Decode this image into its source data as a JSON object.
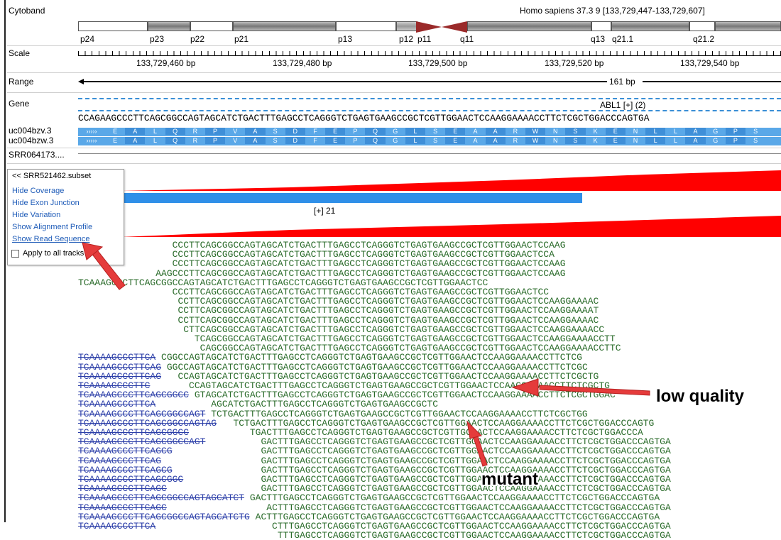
{
  "labels": {
    "cytoband": "Cytoband",
    "scale": "Scale",
    "range": "Range",
    "gene": "Gene",
    "tx1": "uc004bzv.3",
    "tx2": "uc004bzw.3",
    "track": "SRR064173....",
    "assembly": "Homo sapiens 37.3 9 [133,729,447-133,729,607]"
  },
  "cytobands": [
    "p24",
    "p23",
    "p22",
    "p21",
    "p13",
    "p12",
    "p11",
    "q11",
    "q13",
    "q21.1",
    "q21.2"
  ],
  "scale": {
    "ticks": [
      "133,729,460 bp",
      "133,729,480 bp",
      "133,729,500 bp",
      "133,729,520 bp",
      "133,729,540 bp"
    ]
  },
  "range": {
    "text": "161 bp"
  },
  "gene": {
    "name": "ABL1 [+] (2)",
    "sequence": "CCAGAAGCCCTTCAGCGGCCAGTAGCATCTGACTTTGAGCCTCAGGGTCTGAGTGAAGCCGCTCGTTGGAACTCCAAGGAAAACCTTCTCGCTGGACCCAGTGA",
    "aa": [
      "E",
      "A",
      "L",
      "Q",
      "R",
      "P",
      "V",
      "A",
      "S",
      "D",
      "F",
      "E",
      "P",
      "Q",
      "G",
      "L",
      "S",
      "E",
      "A",
      "A",
      "R",
      "W",
      "N",
      "S",
      "K",
      "E",
      "N",
      "L",
      "L",
      "A",
      "G",
      "P",
      "S"
    ]
  },
  "coverage": {
    "label": "[+] 21"
  },
  "menu": {
    "title": "<< SRR521462.subset",
    "items": [
      "Hide Coverage",
      "Hide Exon Junction",
      "Hide Variation",
      "Show Alignment Profile",
      "Show Read Sequence"
    ],
    "apply": "Apply to all tracks"
  },
  "reads": [
    {
      "pre": "",
      "pad": 17,
      "seq": "CCCTTCAGCGGCCAGTAGCATCTGACTTTGAGCCTCAGGGTCTGAGTGAAGCCGCTCGTTGGAACTCCAAG"
    },
    {
      "pre": "",
      "pad": 17,
      "seq": "CCCTTCAGCGGCCAGTAGCATCTGACTTTGAGCCTCAGGGTCTGAGTGAAGCCGCTCGTTGGAACTCCA"
    },
    {
      "pre": "",
      "pad": 17,
      "seq": "CCCTTCAGCGGCCAGTAGCATCTGACTTTGAGCCTCAGGGTCTGAGTGAAGCCGCTCGTTGGAACTCCAAG"
    },
    {
      "pre": "",
      "pad": 14,
      "seq": "AAGCCCTTCAGCGGCCAGTAGCATCTGACTTTGAGCCTCAGGGTCTGAGTGAAGCCGCTCGTTGGAACTCCAAG"
    },
    {
      "pre": "",
      "pad": 0,
      "seq": "TCAAAGCCCTTCAGCGGCCAGTAGCATCTGACTTTGAGCCTCAGGGTCTGAGTGAAGCCGCTCGTTGGAACTCC"
    },
    {
      "pre": "",
      "pad": 17,
      "seq": "CCCTTCAGCGGCCAGTAGCATCTGACTTTGAGCCTCAGGGTCTGAGTGAAGCCGCTCGTTGGAACTCC"
    },
    {
      "pre": "",
      "pad": 18,
      "seq": "CCTTCAGCGGCCAGTAGCATCTGACTTTGAGCCTCAGGGTCTGAGTGAAGCCGCTCGTTGGAACTCCAAGGAAAAC"
    },
    {
      "pre": "",
      "pad": 18,
      "seq": "CCTTCAGCGGCCAGTAGCATCTGACTTTGAGCCTCAGGGTCTGAGTGAAGCCGCTCGTTGGAACTCCAAGGAAAAT"
    },
    {
      "pre": "",
      "pad": 18,
      "seq": "CCTTCAGCGGCCAGTAGCATCTGACTTTGAGCCTCAGGGTCTGAGTGAAGCCGCTCGTTGGAACTCCAAGGAAAAC"
    },
    {
      "pre": "",
      "pad": 19,
      "seq": "CTTCAGCGGCCAGTAGCATCTGACTTTGAGCCTCAGGGTCTGAGTGAAGCCGCTCGTTGGAACTCCAAGGAAAACC"
    },
    {
      "pre": "",
      "pad": 21,
      "seq": "TCAGCGGCCAGTAGCATCTGACTTTGAGCCTCAGGGTCTGAGTGAAGCCGCTCGTTGGAACTCCAAGGAAAACCTT"
    },
    {
      "pre": "",
      "pad": 22,
      "seq": "CAGCGGCCAGTAGCATCTGACTTTGAGCCTCAGGGTCTGAGTGAAGCCGCTCGTTGGAACTCCAAGGAAAACCTTC"
    },
    {
      "pre": "TCAAAAGCCCTTCA",
      "pad": 1,
      "seq": "CGGCCAGTAGCATCTGACTTTGAGCCTCAGGGTCTGAGTGAAGCCGCTCGTTGGAACTCCAAGGAAAACCTTCTCG"
    },
    {
      "pre": "TCAAAAGCCCTTCAG",
      "pad": 1,
      "seq": "GGCCAGTAGCATCTGACTTTGAGCCTCAGGGTCTGAGTGAAGCCGCTCGTTGGAACTCCAAGGAAAACCTTCTCGC"
    },
    {
      "pre": "TCAAAAGCCCTTCAG",
      "pad": 3,
      "seq": "CCAGTAGCATCTGACTTTGAGCCTCAGGGTCTGAGTGAAGCCGCTCGTTGGAACTCCAAGGAAAACCTTCTCGCTG"
    },
    {
      "pre": "TCAAAAGCCCTTC",
      "pad": 7,
      "seq": "CCAGTAGCATCTGACTTTGAGCCTCAGGGTCTGAGTGAAGCCGCTCGTTGGAACTCCAAGGAAAACCTTCTCGCTG"
    },
    {
      "pre": "TCAAAAGCCCTTCAGCGGCC",
      "pad": 1,
      "seq": "GTAGCATCTGACTTTGAGCCTCAGGGTCTGAGTGAAGCCGCTCGTTGGAACTCCAAGGAAAACCTTCTCGCTGGAC"
    },
    {
      "pre": "TCAAAAGCCCTTCA",
      "pad": 10,
      "seq": "AGCATCTGACTTTGAGCCTCAGGGTCTGAGTGAAGCCGCTC"
    },
    {
      "pre": "TCAAAAGCCCTTCAGCGGCCAGT",
      "pad": 1,
      "seq": "TCTGACTTTGAGCCTCAGGGTCTGAGTGAAGCCGCTCGTTGGAACTCCAAGGAAAACCTTCTCGCTGG"
    },
    {
      "pre": "TCAAAAGCCCTTCAGCGGCCAGTAG",
      "pad": 3,
      "seq": "TCTGACTTTGAGCCTCAGGGTCTGAGTGAAGCCGCTCGTTGGAACTCCAAGGAAAACCTTCTCGCTGGACCCAGTG"
    },
    {
      "pre": "TCAAAAGCCCTTCAGCGGCC",
      "pad": 11,
      "seq": "TGACTTTGAGCCTCAGGGTCTGAGTGAAGCCGCTCGTTGGAACTCCAAGGAAAACCTTCTCGCTGGACCCA"
    },
    {
      "pre": "TCAAAAGCCCTTCAGCGGCCAGT",
      "pad": 10,
      "seq": "GACTTTGAGCCTCAGGGTCTGAGTGAAGCCGCTCGTTGGAACTCCAAGGAAAACCTTCTCGCTGGACCCAGTGA"
    },
    {
      "pre": "TCAAAAGCCCTTCAGCG",
      "pad": 16,
      "seq": "GACTTTGAGCCTCAGGGTCTGAGTGAAGCCGCTCGTTGGAACTCCAAGGAAAACCTTCTCGCTGGACCCAGTGA"
    },
    {
      "pre": "TCAAAAGCCCTTCAG",
      "pad": 18,
      "seq": "GACTTTGAGCCTCAGGGTCTGAGTGAAGCCGCTCGTTGGAACTCCAAGGAAAACCTTCTCGCTGGACCCAGTGA"
    },
    {
      "pre": "TCAAAAGCCCTTCAGCG",
      "pad": 16,
      "seq": "GACTTTGAGCCTCAGGGTCTGAGTGAAGCCGCTCGTTGGAACTCCAAGGAAAACCTTCTCGCTGGACCCAGTGA"
    },
    {
      "pre": "TCAAAAGCCCTTCAGCGGC",
      "pad": 14,
      "seq": "GACTTTGAGCCTCAGGGTCTGAGTGAAGCCGCTCGTTGGAACTCCAAGGAAAACCTTCTCGCTGGACCCAGTGA"
    },
    {
      "pre": "TCAAAAGCCCTTCAGC",
      "pad": 17,
      "seq": "GACTTTGAGCCTCAGGGTCTGAGTGAAGCCGCTCGTTGGAACTCCAAGGAAAACCTTCTCGCTGGACCCAGTGA"
    },
    {
      "pre": "TCAAAAGCCCTTCAGCGGCCAGTAGCATCT",
      "pad": 1,
      "seq": "GACTTTGAGCCTCAGGGTCTGAGTGAAGCCGCTCGTTGGAACTCCAAGGAAAACCTTCTCGCTGGACCCAGTGA"
    },
    {
      "pre": "TCAAAAGCCCTTCAGC",
      "pad": 18,
      "seq": "ACTTTGAGCCTCAGGGTCTGAGTGAAGCCGCTCGTTGGAACTCCAAGGAAAACCTTCTCGCTGGACCCAGTGA"
    },
    {
      "pre": "TCAAAAGCCCTTCAGCGGCCAGTAGCATCTG",
      "pad": 1,
      "seq": "ACTTTGAGCCTCAGGGTCTGAGTGAAGCCGCTCGTTGGAACTCCAAGGAAAACCTTCTCGCTGGACCCAGTGA"
    },
    {
      "pre": "TCAAAAGCCCTTCA",
      "pad": 21,
      "seq": "CTTTGAGCCTCAGGGTCTGAGTGAAGCCGCTCGTTGGAACTCCAAGGAAAACCTTCTCGCTGGACCCAGTGA"
    },
    {
      "pre": "",
      "pad": 36,
      "seq": "TTTGAGCCTCAGGGTCTGAGTGAAGCCGCTCGTTGGAACTCCAAGGAAAACCTTCTCGCTGGACCCAGTGA"
    }
  ],
  "annotations": {
    "low_quality": "low quality",
    "mutant": "mutant"
  }
}
